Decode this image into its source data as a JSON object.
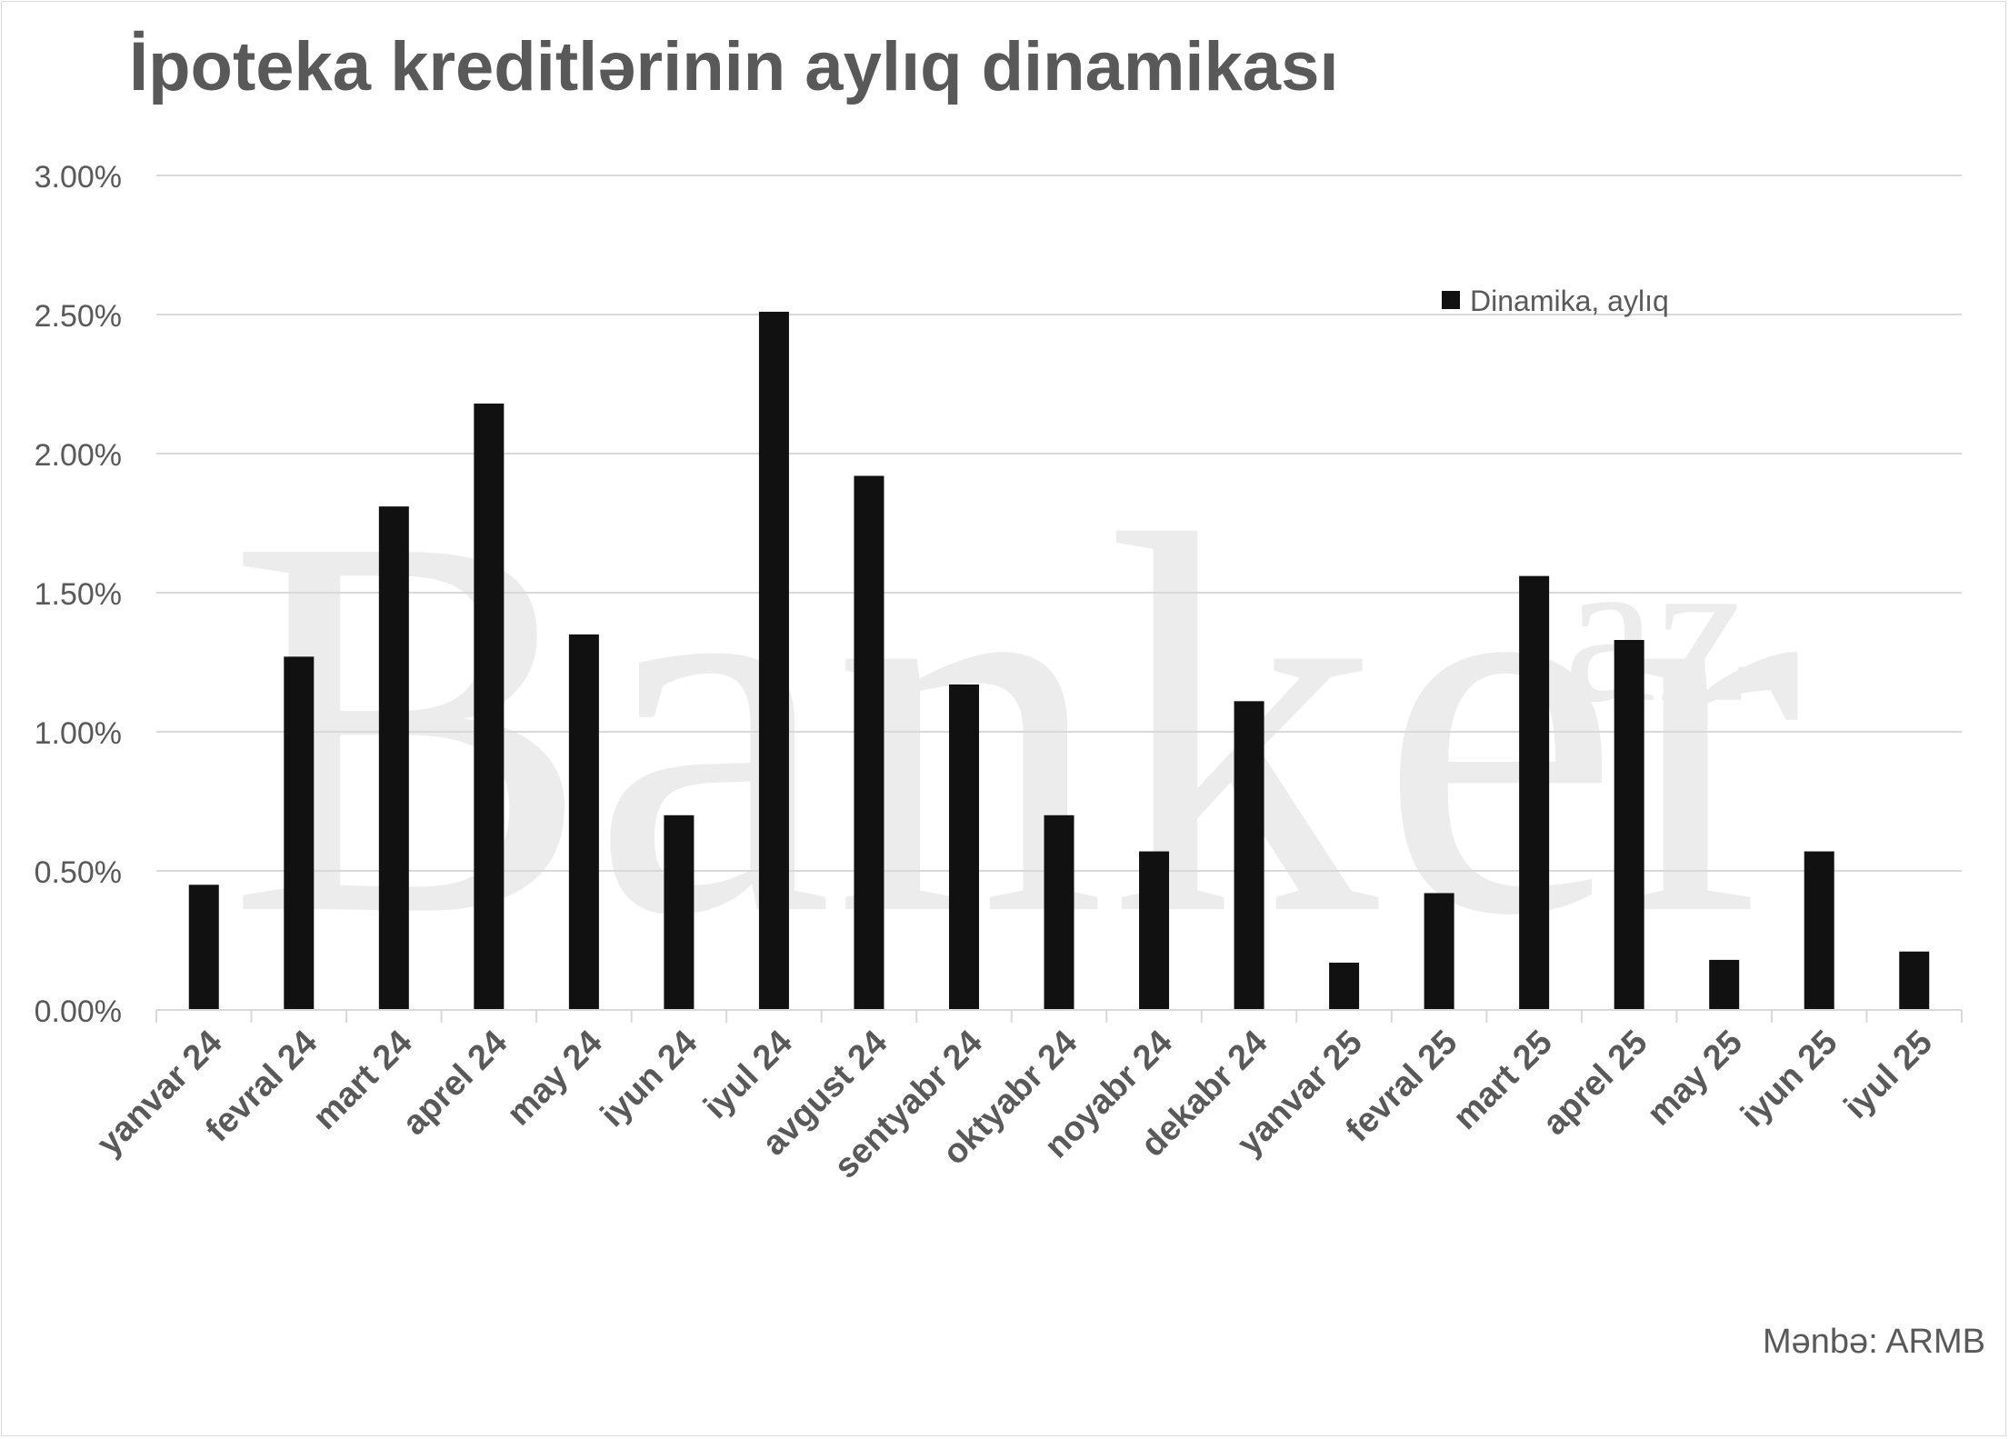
{
  "chart_data": {
    "type": "bar",
    "title": "İpoteka kreditlərinin aylıq dinamikası",
    "xlabel": "",
    "ylabel": "",
    "categories": [
      "yanvar 24",
      "fevral 24",
      "mart 24",
      "aprel 24",
      "may 24",
      "iyun 24",
      "iyul 24",
      "avgust 24",
      "sentyabr 24",
      "oktyabr 24",
      "noyabr 24",
      "dekabr 24",
      "yanvar 25",
      "fevral 25",
      "mart 25",
      "aprel 25",
      "may 25",
      "iyun 25",
      "iyul 25"
    ],
    "series": [
      {
        "name": "Dinamika, aylıq",
        "color": "#111111",
        "values": [
          0.45,
          1.27,
          1.81,
          2.18,
          1.35,
          0.7,
          2.51,
          1.92,
          1.17,
          0.7,
          0.57,
          1.11,
          0.17,
          0.42,
          1.56,
          1.33,
          0.18,
          0.57,
          0.21
        ]
      }
    ],
    "ylim": [
      0,
      3.0
    ],
    "yticks": [
      "0.00%",
      "0.50%",
      "1.00%",
      "1.50%",
      "2.00%",
      "2.50%",
      "3.00%"
    ],
    "grid": true,
    "legend_position": "top-right"
  },
  "watermark": "Banker.az",
  "source": "Mənbə: ARMB",
  "colors": {
    "text": "#595959",
    "grid": "#d9d9d9",
    "bar": "#111111",
    "watermark": "#ececec"
  }
}
